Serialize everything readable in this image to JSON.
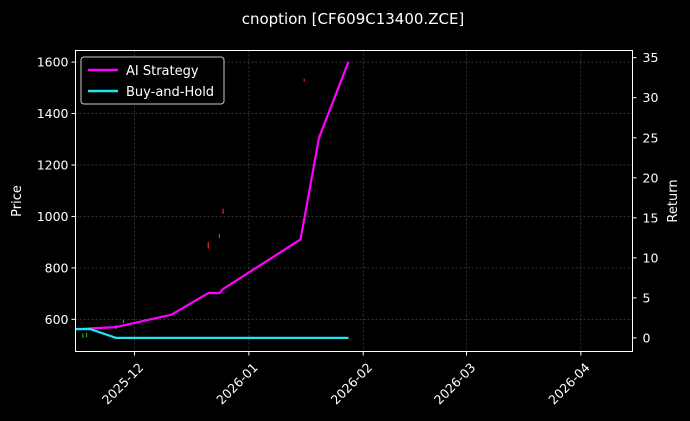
{
  "chart_data": {
    "type": "line",
    "title": "cnoption [CF609C13400.ZCE]",
    "xlabel": "",
    "ylabel_left": "Price",
    "ylabel_right": "Return",
    "x_ticks": [
      "2025-12",
      "2026-01",
      "2026-02",
      "2026-03",
      "2026-04"
    ],
    "x_range": [
      "2025-11-15",
      "2026-04-15"
    ],
    "left_axis": {
      "range": [
        475,
        1645
      ],
      "ticks": [
        600,
        800,
        1000,
        1200,
        1400,
        1600
      ]
    },
    "right_axis": {
      "range": [
        -1.7,
        35.9
      ],
      "ticks": [
        0,
        5,
        10,
        15,
        20,
        25,
        30,
        35
      ]
    },
    "grid": true,
    "legend_position": "top-left",
    "series": [
      {
        "name": "AI Strategy",
        "axis": "right",
        "color": "#ff00ff",
        "points": [
          [
            "2025-11-15",
            1.1
          ],
          [
            "2025-11-26",
            1.35
          ],
          [
            "2025-12-11",
            2.9
          ],
          [
            "2025-12-21",
            5.6
          ],
          [
            "2025-12-24",
            5.6
          ],
          [
            "2025-12-25",
            6.1
          ],
          [
            "2026-01-15",
            12.3
          ],
          [
            "2026-01-20",
            25.0
          ],
          [
            "2026-01-28",
            34.5
          ]
        ]
      },
      {
        "name": "Buy-and-Hold",
        "axis": "right",
        "color": "#22e4f0",
        "points": [
          [
            "2025-11-15",
            1.1
          ],
          [
            "2025-11-19",
            1.1
          ],
          [
            "2025-11-26",
            0.0
          ],
          [
            "2026-01-28",
            0.0
          ]
        ]
      }
    ],
    "price_marks": [
      {
        "date": "2025-11-17",
        "low": 528,
        "high": 545,
        "color": "#1fa81f"
      },
      {
        "date": "2025-11-18",
        "low": 530,
        "high": 548,
        "color": "#1fa81f"
      },
      {
        "date": "2025-11-26",
        "low": 562,
        "high": 578,
        "color": "#1fa81f"
      },
      {
        "date": "2025-11-28",
        "low": 585,
        "high": 598,
        "color": "#1fa81f"
      },
      {
        "date": "2025-12-21",
        "low": 875,
        "high": 900,
        "color": "#ff2020"
      },
      {
        "date": "2025-12-24",
        "low": 915,
        "high": 932,
        "color": "#ff2020"
      },
      {
        "date": "2025-12-25",
        "low": 1010,
        "high": 1030,
        "color": "#ff2020"
      },
      {
        "date": "2026-01-16",
        "low": 1525,
        "high": 1535,
        "color": "#ff2020"
      }
    ]
  }
}
